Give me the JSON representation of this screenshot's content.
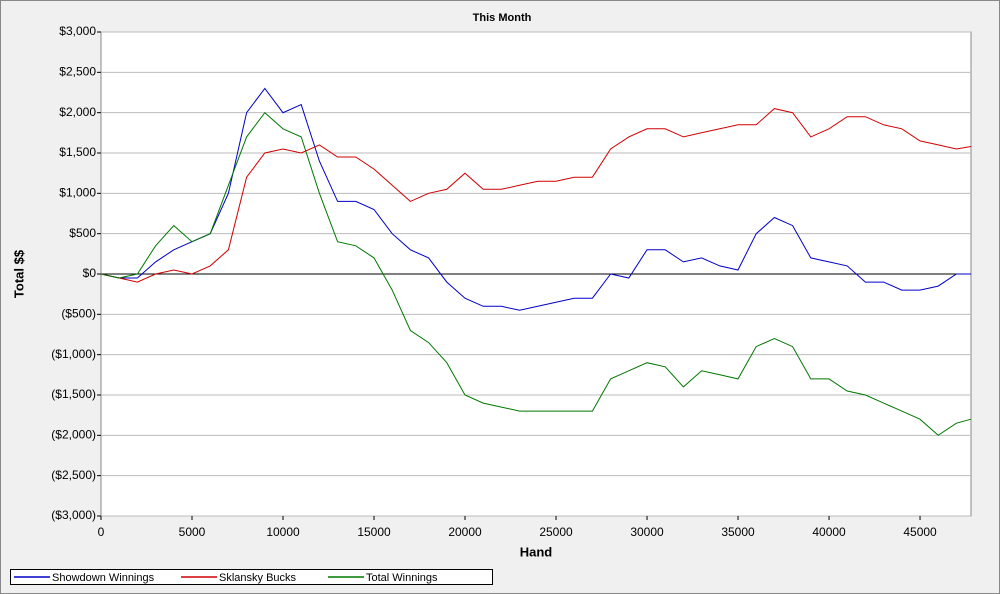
{
  "chart_data": {
    "type": "line",
    "title": "This Month",
    "x_label": "Hand",
    "y_label": "Total $$",
    "x": [
      0,
      1000,
      2000,
      3000,
      4000,
      5000,
      6000,
      7000,
      8000,
      9000,
      10000,
      11000,
      12000,
      13000,
      14000,
      15000,
      16000,
      17000,
      18000,
      19000,
      20000,
      21000,
      22000,
      23000,
      24000,
      25000,
      26000,
      27000,
      28000,
      29000,
      30000,
      31000,
      32000,
      33000,
      34000,
      35000,
      36000,
      37000,
      38000,
      39000,
      40000,
      41000,
      42000,
      43000,
      44000,
      45000,
      46000,
      47000,
      47800
    ],
    "series": [
      {
        "name": "Showdown Winnings",
        "color": "#0000c8",
        "values": [
          0,
          -50,
          -50,
          150,
          300,
          400,
          500,
          1000,
          2000,
          2300,
          2000,
          2100,
          1400,
          900,
          900,
          800,
          500,
          300,
          200,
          -100,
          -300,
          -400,
          -400,
          -450,
          -400,
          -350,
          -300,
          -300,
          0,
          -50,
          300,
          300,
          150,
          200,
          100,
          50,
          500,
          700,
          600,
          200,
          150,
          100,
          -100,
          -100,
          -200,
          -200,
          -150,
          0,
          0
        ]
      },
      {
        "name": "Sklansky Bucks",
        "color": "#d00000",
        "values": [
          0,
          -50,
          -100,
          0,
          50,
          0,
          100,
          300,
          1200,
          1500,
          1550,
          1500,
          1600,
          1450,
          1450,
          1300,
          1100,
          900,
          1000,
          1050,
          1250,
          1050,
          1050,
          1100,
          1150,
          1150,
          1200,
          1200,
          1550,
          1700,
          1800,
          1800,
          1700,
          1750,
          1800,
          1850,
          1850,
          2050,
          2000,
          1700,
          1800,
          1950,
          1950,
          1850,
          1800,
          1650,
          1600,
          1550,
          1580
        ]
      },
      {
        "name": "Total Winnings",
        "color": "#007800",
        "values": [
          0,
          -50,
          0,
          350,
          600,
          400,
          500,
          1100,
          1700,
          2000,
          1800,
          1700,
          1000,
          400,
          350,
          200,
          -200,
          -700,
          -850,
          -1100,
          -1500,
          -1600,
          -1650,
          -1700,
          -1700,
          -1700,
          -1700,
          -1700,
          -1300,
          -1200,
          -1100,
          -1150,
          -1400,
          -1200,
          -1250,
          -1300,
          -900,
          -800,
          -900,
          -1300,
          -1300,
          -1450,
          -1500,
          -1600,
          -1700,
          -1800,
          -2000,
          -1850,
          -1800
        ]
      }
    ],
    "xlim": [
      0,
      47800
    ],
    "ylim": [
      -3000,
      3000
    ],
    "xticks": [
      0,
      5000,
      10000,
      15000,
      20000,
      25000,
      30000,
      35000,
      40000,
      45000
    ],
    "yticks": [
      {
        "value": -3000,
        "label": "($3,000)"
      },
      {
        "value": -2500,
        "label": "($2,500)"
      },
      {
        "value": -2000,
        "label": "($2,000)"
      },
      {
        "value": -1500,
        "label": "($1,500)"
      },
      {
        "value": -1000,
        "label": "($1,000)"
      },
      {
        "value": -500,
        "label": "($500)"
      },
      {
        "value": 0,
        "label": "$0"
      },
      {
        "value": 500,
        "label": "$500"
      },
      {
        "value": 1000,
        "label": "$1,000"
      },
      {
        "value": 1500,
        "label": "$1,500"
      },
      {
        "value": 2000,
        "label": "$2,000"
      },
      {
        "value": 2500,
        "label": "$2,500"
      },
      {
        "value": 3000,
        "label": "$3,000"
      }
    ],
    "grid": true,
    "legend": "bottom"
  }
}
